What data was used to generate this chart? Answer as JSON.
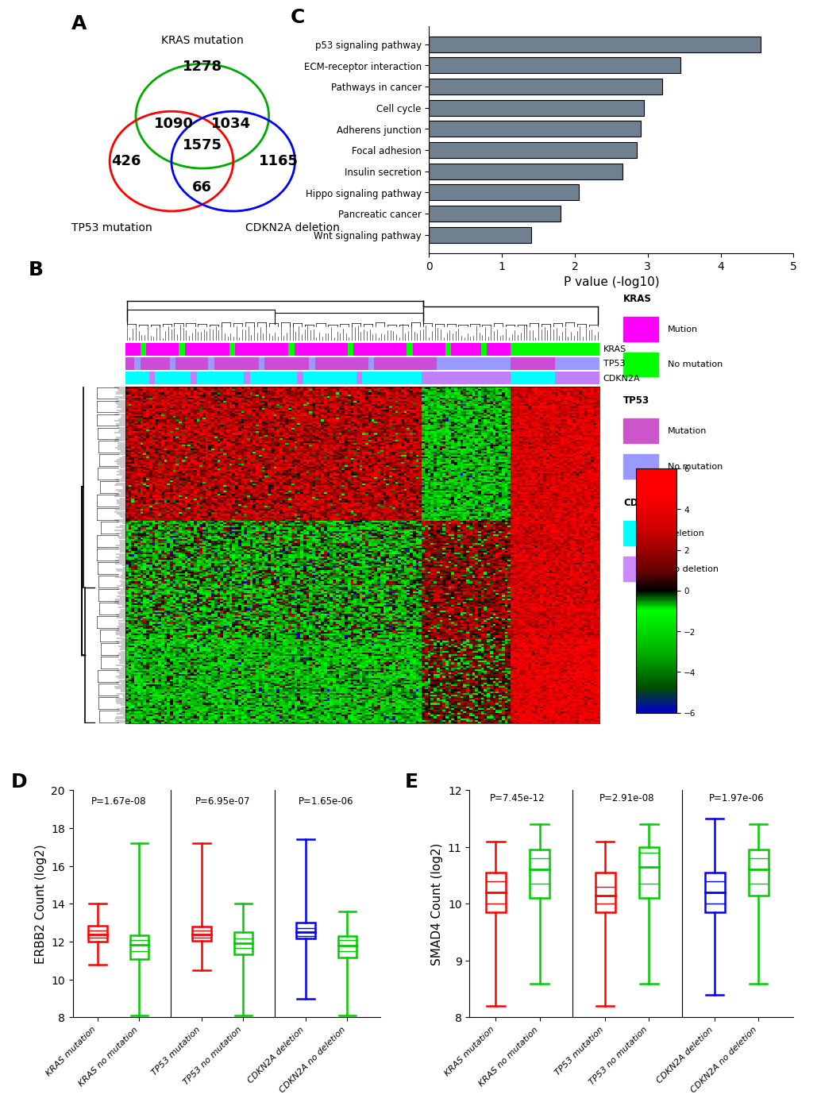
{
  "venn": {
    "kras_only": "1278",
    "tp53_only": "426",
    "cdkn2a_only": "1165",
    "kras_tp53": "1090",
    "kras_cdkn2a": "1034",
    "tp53_cdkn2a": "66",
    "all_three": "1575",
    "kras_color": "#00aa00",
    "tp53_color": "#ff0000",
    "cdkn2a_color": "#0000ff",
    "kras_label": "KRAS mutation",
    "tp53_label": "TP53 mutation",
    "cdkn2a_label": "CDKN2A deletion"
  },
  "barplot": {
    "pathways": [
      "Wnt signaling pathway",
      "Pancreatic cancer",
      "Hippo signaling pathway",
      "Insulin secretion",
      "Focal adhesion",
      "Adherens junction",
      "Cell cycle",
      "Pathways in cancer",
      "ECM-receptor interaction",
      "p53 signaling pathway"
    ],
    "values": [
      1.4,
      1.8,
      2.05,
      2.65,
      2.85,
      2.9,
      2.95,
      3.2,
      3.45,
      4.55
    ],
    "bar_color": "#708090",
    "xlabel": "P value (-log10)",
    "xlim": [
      0,
      5
    ]
  },
  "boxplot_D": {
    "ylabel": "ERBB2 Count (log2)",
    "ylim": [
      8,
      20
    ],
    "yticks": [
      8,
      10,
      12,
      14,
      16,
      18,
      20
    ],
    "groups": [
      {
        "label": "KRAS mutation",
        "color": "#ff0000",
        "median": 12.4,
        "q1": 12.0,
        "q3": 12.85,
        "whisker_low": 10.8,
        "whisker_high": 14.0,
        "extra_lines": [
          12.2,
          12.6
        ]
      },
      {
        "label": "KRAS no mutation",
        "color": "#00cc00",
        "median": 11.85,
        "q1": 11.1,
        "q3": 12.35,
        "whisker_low": 8.1,
        "whisker_high": 17.2,
        "extra_lines": [
          11.5,
          12.1
        ]
      },
      {
        "label": "TP53 mutation",
        "color": "#ff0000",
        "median": 12.4,
        "q1": 12.05,
        "q3": 12.8,
        "whisker_low": 10.5,
        "whisker_high": 17.2,
        "extra_lines": [
          12.2,
          12.6
        ]
      },
      {
        "label": "TP53 no mutation",
        "color": "#00cc00",
        "median": 11.9,
        "q1": 11.35,
        "q3": 12.5,
        "whisker_low": 8.1,
        "whisker_high": 14.0,
        "extra_lines": [
          11.65,
          12.15
        ]
      },
      {
        "label": "CDKN2A deletion",
        "color": "#0000ff",
        "median": 12.5,
        "q1": 12.15,
        "q3": 13.0,
        "whisker_low": 9.0,
        "whisker_high": 17.4,
        "extra_lines": [
          12.3,
          12.7
        ]
      },
      {
        "label": "CDKN2A no deletion",
        "color": "#00cc00",
        "median": 11.8,
        "q1": 11.15,
        "q3": 12.3,
        "whisker_low": 8.1,
        "whisker_high": 13.6,
        "extra_lines": [
          11.5,
          12.1
        ]
      }
    ],
    "pvalues": [
      "P=1.67e-08",
      "P=6.95e-07",
      "P=1.65e-06"
    ]
  },
  "boxplot_E": {
    "ylabel": "SMAD4 Count (log2)",
    "ylim": [
      8,
      12
    ],
    "yticks": [
      8,
      9,
      10,
      11,
      12
    ],
    "groups": [
      {
        "label": "KRAS mutation",
        "color": "#ff0000",
        "median": 10.2,
        "q1": 9.85,
        "q3": 10.55,
        "whisker_low": 8.2,
        "whisker_high": 11.1,
        "extra_lines": [
          10.0,
          10.4
        ]
      },
      {
        "label": "KRAS no mutation",
        "color": "#00cc00",
        "median": 10.6,
        "q1": 10.1,
        "q3": 10.95,
        "whisker_low": 8.6,
        "whisker_high": 11.4,
        "extra_lines": [
          10.35,
          10.8
        ]
      },
      {
        "label": "TP53 mutation",
        "color": "#ff0000",
        "median": 10.15,
        "q1": 9.85,
        "q3": 10.55,
        "whisker_low": 8.2,
        "whisker_high": 11.1,
        "extra_lines": [
          10.0,
          10.3
        ]
      },
      {
        "label": "TP53 no mutation",
        "color": "#00cc00",
        "median": 10.65,
        "q1": 10.1,
        "q3": 11.0,
        "whisker_low": 8.6,
        "whisker_high": 11.4,
        "extra_lines": [
          10.35,
          10.9
        ]
      },
      {
        "label": "CDKN2A deletion",
        "color": "#0000ff",
        "median": 10.2,
        "q1": 9.85,
        "q3": 10.55,
        "whisker_low": 8.4,
        "whisker_high": 11.5,
        "extra_lines": [
          10.0,
          10.4
        ]
      },
      {
        "label": "CDKN2A no deletion",
        "color": "#00cc00",
        "median": 10.6,
        "q1": 10.15,
        "q3": 10.95,
        "whisker_low": 8.6,
        "whisker_high": 11.4,
        "extra_lines": [
          10.35,
          10.8
        ]
      }
    ],
    "pvalues": [
      "P=7.45e-12",
      "P=2.91e-08",
      "P=1.97e-06"
    ]
  },
  "heatmap_cmap_colors": [
    "#0000ff",
    "#003300",
    "#000000",
    "#003300",
    "#006600",
    "#00aa00",
    "#00ff00"
  ],
  "heatmap_cmap_vals": [
    0.0,
    0.25,
    0.42,
    0.5,
    0.65,
    0.8,
    1.0
  ],
  "panel_label_fontsize": 18,
  "axis_label_fontsize": 11,
  "tick_fontsize": 10
}
